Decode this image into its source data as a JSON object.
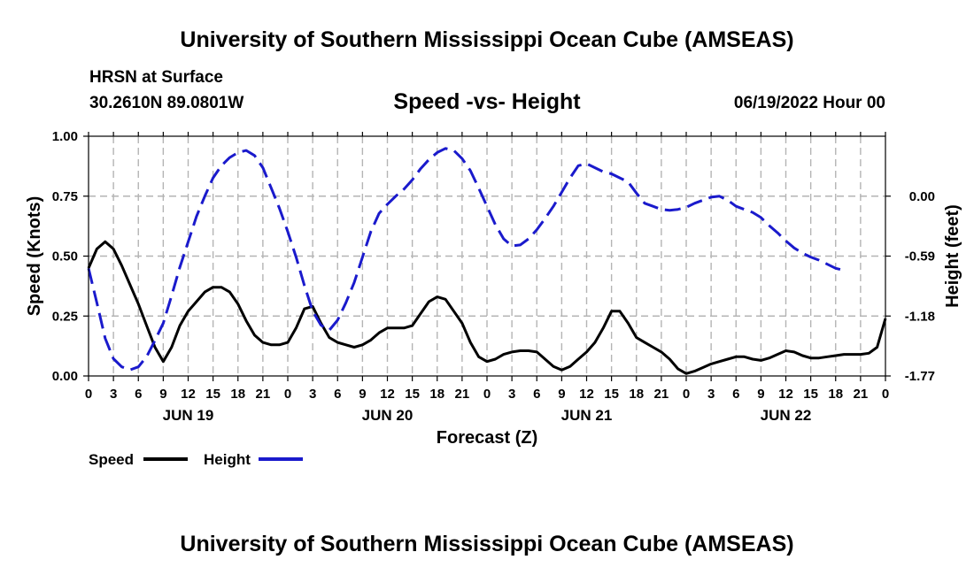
{
  "header": {
    "title_top": "University of Southern Mississippi Ocean Cube (AMSEAS)",
    "station": "HRSN at Surface",
    "coords": "30.2610N  89.0801W",
    "subtitle": "Speed -vs- Height",
    "datetime": "06/19/2022 Hour 00"
  },
  "footer": {
    "title_bottom": "University of Southern Mississippi Ocean Cube (AMSEAS)"
  },
  "chart_data": {
    "type": "line",
    "xlabel": "Forecast (Z)",
    "ylabel_left": "Speed (Knots)",
    "ylabel_right": "Height (feet)",
    "x_range_hours": [
      0,
      96
    ],
    "left_ylim": [
      0,
      1
    ],
    "left_ticks": [
      "0.00",
      "0.25",
      "0.50",
      "0.75",
      "1.00"
    ],
    "left_tick_values": [
      0,
      0.25,
      0.5,
      0.75,
      1.0
    ],
    "right_ylim": [
      -1.77,
      0.59
    ],
    "right_ticks": [
      "-1.77",
      "-1.18",
      "-0.59",
      "0.00"
    ],
    "right_tick_values": [
      -1.77,
      -1.18,
      -0.59,
      0.0
    ],
    "x_tick_hours": [
      0,
      3,
      6,
      9,
      12,
      15,
      18,
      21,
      24,
      27,
      30,
      33,
      36,
      39,
      42,
      45,
      48,
      51,
      54,
      57,
      60,
      63,
      66,
      69,
      72,
      75,
      78,
      81,
      84,
      87,
      90,
      93,
      96
    ],
    "x_tick_labels": [
      "0",
      "3",
      "6",
      "9",
      "12",
      "15",
      "18",
      "21",
      "0",
      "3",
      "6",
      "9",
      "12",
      "15",
      "18",
      "21",
      "0",
      "3",
      "6",
      "9",
      "12",
      "15",
      "18",
      "21",
      "0",
      "3",
      "6",
      "9",
      "12",
      "15",
      "18",
      "21",
      "0"
    ],
    "day_labels": [
      {
        "hour": 12,
        "label": "JUN 19"
      },
      {
        "hour": 36,
        "label": "JUN 20"
      },
      {
        "hour": 60,
        "label": "JUN 21"
      },
      {
        "hour": 84,
        "label": "JUN 22"
      }
    ],
    "grid": true,
    "legend_position": "bottom-left",
    "series": [
      {
        "name": "Speed",
        "axis": "left",
        "color": "#000000",
        "dash": "solid",
        "points": [
          [
            0,
            0.45
          ],
          [
            1,
            0.53
          ],
          [
            2,
            0.56
          ],
          [
            3,
            0.53
          ],
          [
            4,
            0.46
          ],
          [
            5,
            0.38
          ],
          [
            6,
            0.3
          ],
          [
            7,
            0.21
          ],
          [
            8,
            0.12
          ],
          [
            9,
            0.06
          ],
          [
            10,
            0.12
          ],
          [
            11,
            0.21
          ],
          [
            12,
            0.27
          ],
          [
            13,
            0.31
          ],
          [
            14,
            0.35
          ],
          [
            15,
            0.37
          ],
          [
            16,
            0.37
          ],
          [
            17,
            0.35
          ],
          [
            18,
            0.3
          ],
          [
            19,
            0.23
          ],
          [
            20,
            0.17
          ],
          [
            21,
            0.14
          ],
          [
            22,
            0.13
          ],
          [
            23,
            0.13
          ],
          [
            24,
            0.14
          ],
          [
            25,
            0.2
          ],
          [
            26,
            0.28
          ],
          [
            27,
            0.29
          ],
          [
            28,
            0.22
          ],
          [
            29,
            0.16
          ],
          [
            30,
            0.14
          ],
          [
            31,
            0.13
          ],
          [
            32,
            0.12
          ],
          [
            33,
            0.13
          ],
          [
            34,
            0.15
          ],
          [
            35,
            0.18
          ],
          [
            36,
            0.2
          ],
          [
            37,
            0.2
          ],
          [
            38,
            0.2
          ],
          [
            39,
            0.21
          ],
          [
            40,
            0.26
          ],
          [
            41,
            0.31
          ],
          [
            42,
            0.33
          ],
          [
            43,
            0.32
          ],
          [
            44,
            0.27
          ],
          [
            45,
            0.22
          ],
          [
            46,
            0.14
          ],
          [
            47,
            0.08
          ],
          [
            48,
            0.06
          ],
          [
            49,
            0.07
          ],
          [
            50,
            0.09
          ],
          [
            51,
            0.1
          ],
          [
            52,
            0.105
          ],
          [
            53,
            0.105
          ],
          [
            54,
            0.1
          ],
          [
            55,
            0.07
          ],
          [
            56,
            0.04
          ],
          [
            57,
            0.025
          ],
          [
            58,
            0.04
          ],
          [
            59,
            0.07
          ],
          [
            60,
            0.1
          ],
          [
            61,
            0.14
          ],
          [
            62,
            0.2
          ],
          [
            63,
            0.27
          ],
          [
            64,
            0.27
          ],
          [
            65,
            0.22
          ],
          [
            66,
            0.16
          ],
          [
            67,
            0.14
          ],
          [
            68,
            0.12
          ],
          [
            69,
            0.1
          ],
          [
            70,
            0.07
          ],
          [
            71,
            0.03
          ],
          [
            72,
            0.01
          ],
          [
            73,
            0.02
          ],
          [
            74,
            0.035
          ],
          [
            75,
            0.05
          ],
          [
            76,
            0.06
          ],
          [
            77,
            0.07
          ],
          [
            78,
            0.08
          ],
          [
            79,
            0.08
          ],
          [
            80,
            0.07
          ],
          [
            81,
            0.065
          ],
          [
            82,
            0.075
          ],
          [
            83,
            0.09
          ],
          [
            84,
            0.105
          ],
          [
            85,
            0.1
          ],
          [
            86,
            0.085
          ],
          [
            87,
            0.075
          ],
          [
            88,
            0.075
          ],
          [
            89,
            0.08
          ],
          [
            90,
            0.085
          ],
          [
            91,
            0.09
          ],
          [
            92,
            0.09
          ],
          [
            93,
            0.09
          ],
          [
            94,
            0.095
          ],
          [
            95,
            0.12
          ],
          [
            96,
            0.24
          ]
        ]
      },
      {
        "name": "Height",
        "axis": "right",
        "color": "#1a1acc",
        "dash": "dashed",
        "points": [
          [
            0,
            -0.71
          ],
          [
            1,
            -1.05
          ],
          [
            2,
            -1.4
          ],
          [
            3,
            -1.6
          ],
          [
            4,
            -1.68
          ],
          [
            5,
            -1.71
          ],
          [
            6,
            -1.68
          ],
          [
            7,
            -1.58
          ],
          [
            8,
            -1.42
          ],
          [
            9,
            -1.25
          ],
          [
            10,
            -0.98
          ],
          [
            11,
            -0.7
          ],
          [
            12,
            -0.45
          ],
          [
            13,
            -0.2
          ],
          [
            14,
            0.0
          ],
          [
            15,
            0.18
          ],
          [
            16,
            0.3
          ],
          [
            17,
            0.38
          ],
          [
            18,
            0.43
          ],
          [
            19,
            0.45
          ],
          [
            20,
            0.4
          ],
          [
            21,
            0.28
          ],
          [
            22,
            0.08
          ],
          [
            23,
            -0.12
          ],
          [
            24,
            -0.35
          ],
          [
            25,
            -0.6
          ],
          [
            26,
            -0.88
          ],
          [
            27,
            -1.13
          ],
          [
            28,
            -1.27
          ],
          [
            29,
            -1.32
          ],
          [
            30,
            -1.22
          ],
          [
            31,
            -1.05
          ],
          [
            32,
            -0.85
          ],
          [
            33,
            -0.6
          ],
          [
            34,
            -0.35
          ],
          [
            35,
            -0.17
          ],
          [
            36,
            -0.08
          ],
          [
            37,
            0.0
          ],
          [
            38,
            0.07
          ],
          [
            39,
            0.16
          ],
          [
            40,
            0.27
          ],
          [
            41,
            0.36
          ],
          [
            42,
            0.43
          ],
          [
            43,
            0.47
          ],
          [
            44,
            0.45
          ],
          [
            45,
            0.37
          ],
          [
            46,
            0.25
          ],
          [
            47,
            0.08
          ],
          [
            48,
            -0.1
          ],
          [
            49,
            -0.28
          ],
          [
            50,
            -0.42
          ],
          [
            51,
            -0.49
          ],
          [
            52,
            -0.48
          ],
          [
            53,
            -0.42
          ],
          [
            54,
            -0.33
          ],
          [
            55,
            -0.22
          ],
          [
            56,
            -0.1
          ],
          [
            57,
            0.04
          ],
          [
            58,
            0.18
          ],
          [
            59,
            0.3
          ],
          [
            60,
            0.32
          ],
          [
            61,
            0.28
          ],
          [
            62,
            0.24
          ],
          [
            63,
            0.22
          ],
          [
            64,
            0.18
          ],
          [
            65,
            0.14
          ],
          [
            66,
            0.03
          ],
          [
            67,
            -0.07
          ],
          [
            68,
            -0.1
          ],
          [
            69,
            -0.13
          ],
          [
            70,
            -0.14
          ],
          [
            71,
            -0.13
          ],
          [
            72,
            -0.11
          ],
          [
            73,
            -0.07
          ],
          [
            74,
            -0.04
          ],
          [
            75,
            -0.01
          ],
          [
            76,
            0.0
          ],
          [
            77,
            -0.04
          ],
          [
            78,
            -0.1
          ],
          [
            79,
            -0.13
          ],
          [
            80,
            -0.16
          ],
          [
            81,
            -0.21
          ],
          [
            82,
            -0.29
          ],
          [
            83,
            -0.36
          ],
          [
            84,
            -0.44
          ],
          [
            85,
            -0.51
          ],
          [
            86,
            -0.56
          ],
          [
            87,
            -0.6
          ],
          [
            88,
            -0.63
          ],
          [
            89,
            -0.67
          ],
          [
            90,
            -0.71
          ],
          [
            91,
            -0.73
          ]
        ]
      }
    ]
  }
}
